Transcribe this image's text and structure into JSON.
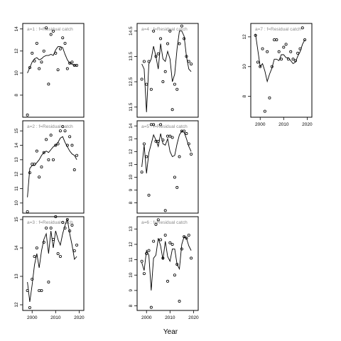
{
  "figure": {
    "xlabel": "Year"
  },
  "chart_data": {
    "type": "scatter",
    "xlabel": "Year",
    "x_ticks": [
      2000,
      2010,
      2020
    ],
    "xlim": [
      1996,
      2022
    ],
    "grid": false,
    "panels": [
      {
        "title": "a=1 : f=Residual catch",
        "ylim": [
          6,
          14.5
        ],
        "y_ticks": [
          8,
          10,
          12,
          14
        ],
        "points": {
          "x": [
            1998,
            1999,
            2000,
            2001,
            2002,
            2003,
            2004,
            2005,
            2006,
            2007,
            2008,
            2009,
            2010,
            2011,
            2012,
            2013,
            2014,
            2015,
            2016,
            2017,
            2018,
            2019
          ],
          "y": [
            6.2,
            10.5,
            11.8,
            11.1,
            12.7,
            10.4,
            11.0,
            12.0,
            14.1,
            9.0,
            13.5,
            13.8,
            11.8,
            10.3,
            12.2,
            13.2,
            12.7,
            10.4,
            10.9,
            11.0,
            10.7,
            10.7
          ]
        },
        "fitted": {
          "x": [
            1998,
            1999,
            2000,
            2001,
            2002,
            2003,
            2004,
            2005,
            2006,
            2007,
            2008,
            2009,
            2010,
            2011,
            2012,
            2013,
            2014,
            2015,
            2016,
            2017,
            2018,
            2019
          ],
          "y": [
            10.0,
            10.5,
            11.0,
            11.3,
            11.4,
            11.2,
            11.3,
            11.5,
            11.6,
            11.6,
            11.7,
            11.6,
            12.1,
            12.4,
            12.4,
            12.3,
            11.7,
            11.2,
            10.9,
            10.8,
            10.7,
            10.7
          ]
        }
      },
      {
        "title": "a=2 : f=Residual catch",
        "ylim": [
          9.3,
          15.7
        ],
        "y_ticks": [
          10,
          11,
          12,
          13,
          14,
          15
        ],
        "points": {
          "x": [
            1998,
            1999,
            2000,
            2001,
            2002,
            2003,
            2004,
            2005,
            2006,
            2007,
            2008,
            2009,
            2010,
            2011,
            2012,
            2013,
            2014,
            2015,
            2016,
            2017,
            2018,
            2019
          ],
          "y": [
            9.4,
            12.1,
            12.7,
            12.7,
            13.6,
            11.8,
            12.5,
            13.5,
            14.4,
            13.0,
            14.7,
            13.0,
            14.0,
            14.1,
            15.0,
            15.3,
            15.0,
            14.0,
            14.6,
            14.0,
            12.3,
            13.3
          ]
        },
        "fitted": {
          "x": [
            1998,
            1999,
            2000,
            2001,
            2002,
            2003,
            2004,
            2005,
            2006,
            2007,
            2008,
            2009,
            2010,
            2011,
            2012,
            2013,
            2014,
            2015,
            2016,
            2017,
            2018,
            2019
          ],
          "y": [
            10.4,
            12.4,
            12.6,
            12.6,
            12.8,
            13.0,
            13.3,
            13.5,
            13.6,
            13.5,
            13.7,
            13.9,
            14.0,
            14.2,
            14.5,
            14.6,
            14.2,
            13.9,
            13.6,
            13.4,
            13.3,
            13.0
          ]
        }
      },
      {
        "title": "a=3 : f=Residual catch",
        "ylim": [
          11.8,
          15.1
        ],
        "y_ticks": [
          12.0,
          13.0,
          14.0,
          15.0
        ],
        "points": {
          "x": [
            1998,
            1999,
            2000,
            2001,
            2002,
            2003,
            2004,
            2005,
            2006,
            2007,
            2008,
            2009,
            2010,
            2011,
            2012,
            2013,
            2014,
            2015,
            2016,
            2017,
            2018,
            2019
          ],
          "y": [
            12.5,
            11.9,
            12.9,
            13.7,
            14.0,
            12.5,
            12.5,
            14.2,
            14.7,
            12.8,
            14.7,
            14.3,
            15.1,
            13.8,
            13.7,
            14.9,
            14.7,
            15.0,
            14.6,
            14.8,
            13.9,
            14.1
          ]
        },
        "fitted": {
          "x": [
            1998,
            1999,
            2000,
            2001,
            2002,
            2003,
            2004,
            2005,
            2006,
            2007,
            2008,
            2009,
            2010,
            2011,
            2012,
            2013,
            2014,
            2015,
            2016,
            2017,
            2018,
            2019
          ],
          "y": [
            12.8,
            12.1,
            12.7,
            13.4,
            13.8,
            13.3,
            13.9,
            14.3,
            14.5,
            13.8,
            14.6,
            14.0,
            14.6,
            14.3,
            14.1,
            14.5,
            14.8,
            15.0,
            14.5,
            14.1,
            13.6,
            13.7
          ]
        }
      },
      {
        "title": "a=4 : f=Residual catch",
        "ylim": [
          11.1,
          14.8
        ],
        "y_ticks": [
          11.5,
          12.5,
          13.5,
          14.5
        ],
        "points": {
          "x": [
            1998,
            1999,
            2000,
            2001,
            2002,
            2003,
            2004,
            2005,
            2006,
            2007,
            2008,
            2009,
            2010,
            2011,
            2012,
            2013,
            2014,
            2015,
            2016,
            2017,
            2018,
            2019
          ],
          "y": [
            12.6,
            13.3,
            12.4,
            13.3,
            12.2,
            14.5,
            13.5,
            13.6,
            14.2,
            12.5,
            12.9,
            14.0,
            14.5,
            11.4,
            12.4,
            12.2,
            14.0,
            14.7,
            14.2,
            13.5,
            13.3,
            13.2
          ]
        },
        "fitted": {
          "x": [
            1998,
            1999,
            2000,
            2001,
            2002,
            2003,
            2004,
            2005,
            2006,
            2007,
            2008,
            2009,
            2010,
            2011,
            2012,
            2013,
            2014,
            2015,
            2016,
            2017,
            2018,
            2019
          ],
          "y": [
            13.2,
            13.0,
            11.3,
            13.2,
            13.4,
            13.9,
            13.5,
            13.0,
            14.0,
            13.4,
            13.3,
            13.7,
            13.4,
            12.5,
            12.8,
            13.8,
            14.5,
            14.5,
            14.3,
            13.5,
            13.0,
            12.9
          ]
        }
      },
      {
        "title": "a=5 : f=Residual catch",
        "ylim": [
          7.2,
          14.4
        ],
        "y_ticks": [
          8,
          9,
          10,
          11,
          12,
          13,
          14
        ],
        "points": {
          "x": [
            1998,
            1999,
            2000,
            2001,
            2002,
            2003,
            2004,
            2005,
            2006,
            2007,
            2008,
            2009,
            2010,
            2011,
            2012,
            2013,
            2014,
            2015,
            2016,
            2017,
            2018,
            2019
          ],
          "y": [
            10.4,
            12.6,
            11.6,
            8.6,
            14.1,
            14.1,
            12.8,
            12.8,
            14.1,
            12.9,
            7.4,
            13.2,
            13.2,
            13.1,
            10.0,
            9.2,
            11.6,
            13.6,
            13.6,
            13.4,
            12.6,
            11.8
          ]
        },
        "fitted": {
          "x": [
            1998,
            1999,
            2000,
            2001,
            2002,
            2003,
            2004,
            2005,
            2006,
            2007,
            2008,
            2009,
            2010,
            2011,
            2012,
            2013,
            2014,
            2015,
            2016,
            2017,
            2018,
            2019
          ],
          "y": [
            10.8,
            12.5,
            10.3,
            11.9,
            12.6,
            13.3,
            12.9,
            12.4,
            13.4,
            12.6,
            12.5,
            13.0,
            12.0,
            11.6,
            11.7,
            12.6,
            13.3,
            13.6,
            13.5,
            13.0,
            12.4,
            12.0
          ]
        }
      },
      {
        "title": "a=6 : f=Residual catch",
        "ylim": [
          7.7,
          13.8
        ],
        "y_ticks": [
          8,
          9,
          10,
          11,
          12,
          13
        ],
        "points": {
          "x": [
            1998,
            1999,
            2000,
            2001,
            2002,
            2003,
            2004,
            2005,
            2006,
            2007,
            2008,
            2009,
            2010,
            2011,
            2012,
            2013,
            2014,
            2015,
            2016,
            2017,
            2018,
            2019
          ],
          "y": [
            10.9,
            10.1,
            11.4,
            11.6,
            7.9,
            12.2,
            13.3,
            13.6,
            12.3,
            11.1,
            12.6,
            9.6,
            12.1,
            12.0,
            10.0,
            10.7,
            8.3,
            11.7,
            12.5,
            12.4,
            12.6,
            11.1
          ]
        },
        "fitted": {
          "x": [
            1998,
            1999,
            2000,
            2001,
            2002,
            2003,
            2004,
            2005,
            2006,
            2007,
            2008,
            2009,
            2010,
            2011,
            2012,
            2013,
            2014,
            2015,
            2016,
            2017,
            2018,
            2019
          ],
          "y": [
            10.8,
            10.3,
            11.6,
            11.3,
            9.0,
            11.1,
            11.3,
            12.4,
            11.9,
            11.0,
            12.2,
            11.2,
            10.9,
            11.7,
            11.7,
            10.7,
            10.4,
            12.0,
            12.5,
            12.4,
            11.9,
            11.6
          ]
        }
      },
      {
        "title": "a=7 : f=Residual catch",
        "ylim": [
          6.6,
          12.9
        ],
        "y_ticks": [
          8,
          10,
          12
        ],
        "points": {
          "x": [
            1998,
            1999,
            2000,
            2001,
            2002,
            2003,
            2004,
            2005,
            2006,
            2007,
            2008,
            2009,
            2010,
            2011,
            2012,
            2013,
            2014,
            2015,
            2016,
            2017,
            2018,
            2019
          ],
          "y": [
            12.1,
            10.3,
            10.0,
            11.2,
            7.0,
            11.0,
            7.9,
            10.0,
            11.8,
            11.8,
            11.0,
            10.5,
            11.3,
            11.5,
            10.5,
            11.0,
            10.5,
            10.4,
            10.9,
            11.2,
            12.6,
            11.8
          ]
        },
        "fitted": {
          "x": [
            1998,
            1999,
            2000,
            2001,
            2002,
            2003,
            2004,
            2005,
            2006,
            2007,
            2008,
            2009,
            2010,
            2011,
            2012,
            2013,
            2014,
            2015,
            2016,
            2017,
            2018,
            2019
          ],
          "y": [
            12.2,
            11.1,
            10.0,
            10.2,
            9.7,
            9.0,
            9.5,
            9.9,
            10.5,
            10.5,
            10.4,
            10.8,
            10.8,
            10.6,
            10.6,
            10.4,
            10.2,
            10.3,
            10.7,
            11.0,
            11.5,
            11.8
          ]
        }
      }
    ]
  }
}
